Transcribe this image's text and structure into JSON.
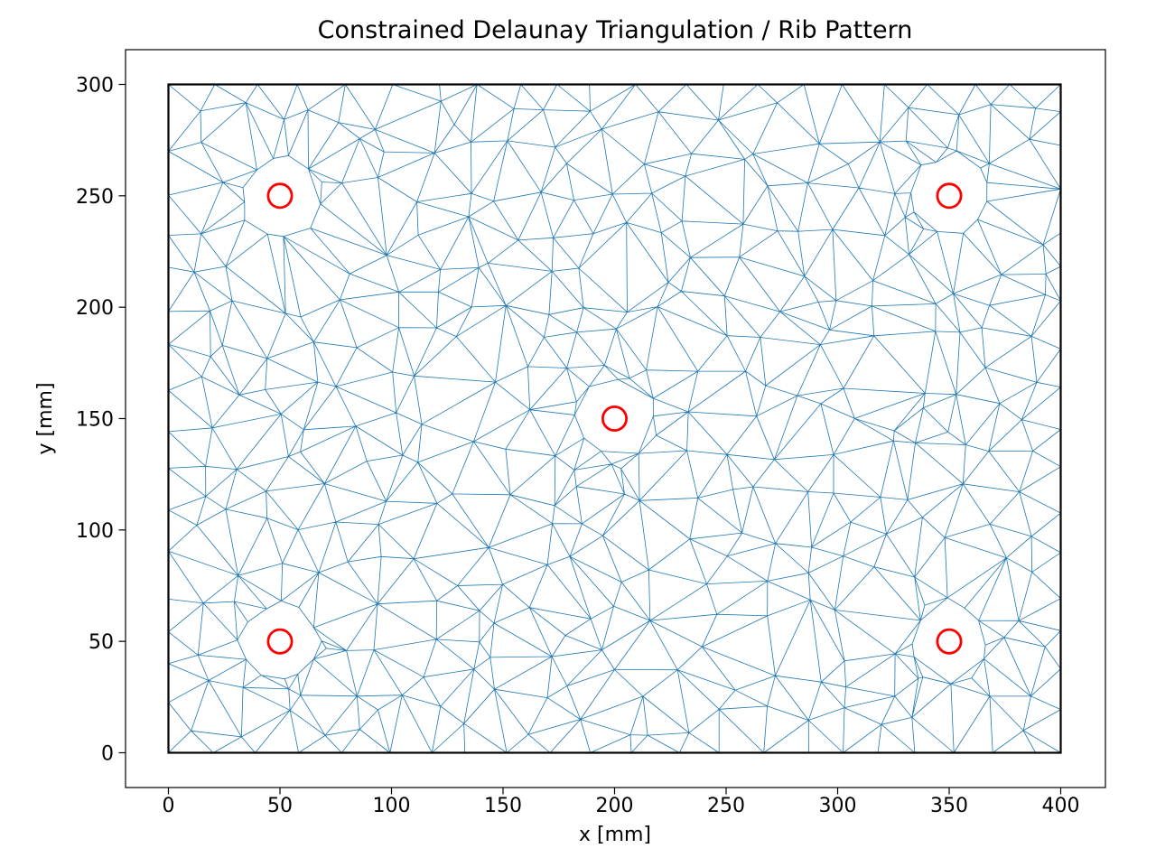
{
  "chart_data": {
    "type": "triangulation",
    "title": "Constrained Delaunay Triangulation / Rib Pattern",
    "xlabel": "x [mm]",
    "ylabel": "y [mm]",
    "xlim": [
      -20,
      420
    ],
    "ylim": [
      -15.6,
      315.6
    ],
    "xticks": [
      0,
      50,
      100,
      150,
      200,
      250,
      300,
      350,
      400
    ],
    "yticks": [
      0,
      50,
      100,
      150,
      200,
      250,
      300
    ],
    "grid": false,
    "legend": null,
    "plate": {
      "x_range": [
        0,
        400
      ],
      "y_range": [
        0,
        300
      ],
      "outline_color": "#000000",
      "outline_width": 2.2
    },
    "ribs": {
      "centers": [
        [
          50,
          250
        ],
        [
          350,
          250
        ],
        [
          200,
          150
        ],
        [
          50,
          50
        ],
        [
          350,
          50
        ]
      ],
      "marker_radius_mm": 5.3,
      "marker_color": "#ff0000",
      "marker_stroke_px": 2.8,
      "clear_radius_mm": 18,
      "grid_exclusion_mm": 21,
      "trim_radius_mm": 16.5
    },
    "mesh": {
      "line_color": "#1f77b4",
      "line_width": 0.8,
      "target_edge_mm": 17,
      "boundary_step_mm": 18,
      "ring_points_per_hole": 12,
      "seed": 11
    },
    "axes_frame_color": "#000000"
  }
}
